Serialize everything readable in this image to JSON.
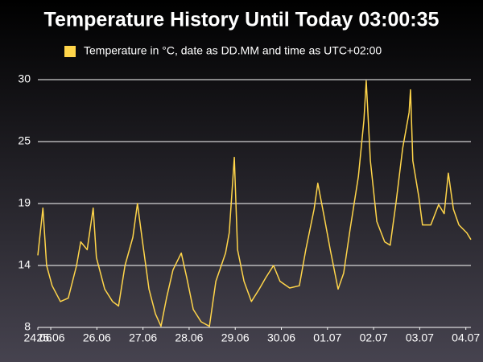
{
  "chart_data": {
    "type": "line",
    "title": "Temperature History Until Today 03:00:35",
    "x": [
      -0.28,
      -0.17,
      -0.09,
      0.03,
      0.21,
      0.38,
      0.56,
      0.65,
      0.79,
      0.92,
      0.99,
      1.17,
      1.34,
      1.47,
      1.61,
      1.78,
      1.88,
      1.99,
      2.13,
      2.27,
      2.39,
      2.51,
      2.65,
      2.83,
      2.95,
      3.09,
      3.26,
      3.44,
      3.58,
      3.79,
      3.87,
      3.98,
      4.05,
      4.19,
      4.35,
      4.52,
      4.66,
      4.83,
      4.97,
      5.18,
      5.39,
      5.53,
      5.71,
      5.79,
      5.93,
      6.06,
      6.23,
      6.35,
      6.49,
      6.67,
      6.79,
      6.84,
      6.93,
      7.07,
      7.24,
      7.36,
      7.49,
      7.63,
      7.77,
      7.8,
      7.85,
      7.98,
      8.06,
      8.24,
      8.41,
      8.53,
      8.62,
      8.73,
      8.85,
      9.02,
      9.11
    ],
    "series": [
      {
        "name": "Temperature in °C, date as DD.MM and time as UTC+02:00",
        "color": "#ffd54a",
        "values": [
          14.4,
          18.6,
          13.5,
          11.7,
          10.3,
          10.6,
          13.5,
          15.6,
          14.9,
          18.6,
          14.2,
          11.4,
          10.3,
          9.9,
          13.5,
          16.0,
          19.0,
          15.6,
          11.4,
          9.2,
          8.1,
          10.6,
          13.1,
          14.6,
          12.4,
          9.6,
          8.5,
          8.1,
          12.1,
          14.6,
          16.4,
          23.1,
          14.9,
          12.1,
          10.3,
          11.4,
          12.4,
          13.5,
          12.1,
          11.5,
          11.7,
          14.9,
          18.5,
          20.8,
          17.8,
          14.9,
          11.4,
          12.8,
          16.7,
          21.4,
          26.4,
          29.9,
          22.8,
          17.4,
          15.6,
          15.3,
          19.2,
          23.9,
          27.1,
          29.1,
          22.8,
          19.6,
          17.1,
          17.1,
          18.9,
          18.1,
          21.7,
          18.5,
          17.1,
          16.4,
          15.8
        ]
      }
    ],
    "xlim": [
      -0.28,
      9.11
    ],
    "xticks": [
      {
        "value": -0.28,
        "label": "24.06"
      },
      {
        "value": 0,
        "label": "25.06"
      },
      {
        "value": 1,
        "label": "26.06"
      },
      {
        "value": 2,
        "label": "27.06"
      },
      {
        "value": 3,
        "label": "28.06"
      },
      {
        "value": 4,
        "label": "29.06"
      },
      {
        "value": 5,
        "label": "30.06"
      },
      {
        "value": 6,
        "label": "01.07"
      },
      {
        "value": 7,
        "label": "02.07"
      },
      {
        "value": 8,
        "label": "03.07"
      },
      {
        "value": 9,
        "label": "04.07"
      }
    ],
    "ylim": [
      8,
      30
    ],
    "yticks": [
      8,
      {
        "value": 13.5,
        "label": "14"
      },
      19,
      {
        "value": 24.5,
        "label": "25"
      },
      30
    ],
    "grid": true
  }
}
